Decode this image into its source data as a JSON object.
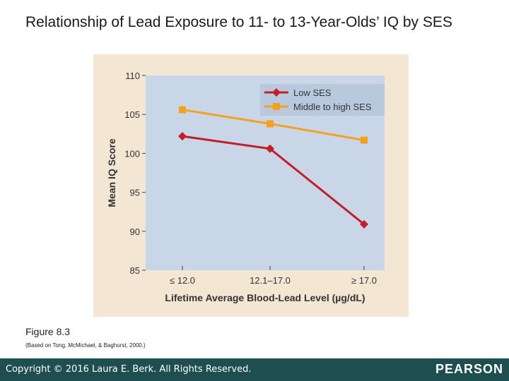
{
  "slide": {
    "title": "Relationship of Lead Exposure to 11- to 13-Year-Olds’ IQ by SES",
    "figure_label": "Figure 8.3",
    "figure_source": "(Based on Tong, McMichael, & Baghurst, 2000.)"
  },
  "footer": {
    "copyright": "Copyright © 2016 Laura E. Berk. All Rights Reserved.",
    "logo_text": "PEARSON"
  },
  "chart_data": {
    "type": "line",
    "categories": [
      "≤ 12.0",
      "12.1–17.0",
      "≥ 17.0"
    ],
    "series": [
      {
        "name": "Low SES",
        "values": [
          102.2,
          100.6,
          90.9
        ],
        "color": "#c41e2a",
        "marker": "diamond"
      },
      {
        "name": "Middle to high SES",
        "values": [
          105.6,
          103.8,
          101.7
        ],
        "color": "#f5a11c",
        "marker": "square"
      }
    ],
    "xlabel": "Lifetime Average Blood-Lead Level (µg/dL)",
    "ylabel": "Mean IQ Score",
    "ylim": [
      85,
      110
    ],
    "yticks": [
      85,
      90,
      95,
      100,
      105,
      110
    ],
    "legend": "top-right",
    "colors": {
      "plot_background": "#c9d6e8",
      "panel_background": "#f3e6d2",
      "legend_background": "#b8c9de"
    }
  }
}
